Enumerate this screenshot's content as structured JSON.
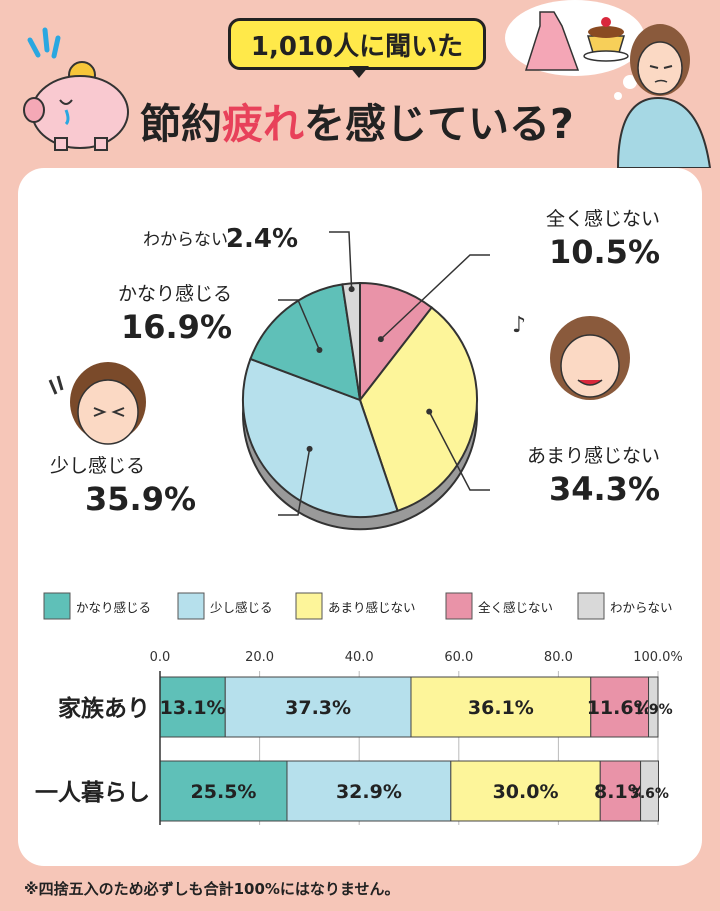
{
  "header": {
    "badge": "1,010人に聞いた",
    "title_pre": "節約",
    "title_highlight": "疲れ",
    "title_post": "を感じている?"
  },
  "footnote": "※四捨五入のため必ずしも合計100%にはなりません。",
  "colors": {
    "kanari": "#5fc0b8",
    "sukoshi": "#b6e0ec",
    "amari": "#fdf59a",
    "mattaku": "#e993a8",
    "wakaranai": "#d9d9d9"
  },
  "chart_data": [
    {
      "type": "pie",
      "categories": [
        "全く感じない",
        "あまり感じない",
        "少し感じる",
        "かなり感じる",
        "わからない"
      ],
      "values": [
        10.5,
        34.3,
        35.9,
        16.9,
        2.4
      ],
      "labels": [
        {
          "name": "全く感じない",
          "value": "10.5%"
        },
        {
          "name": "あまり感じない",
          "value": "34.3%"
        },
        {
          "name": "少し感じる",
          "value": "35.9%"
        },
        {
          "name": "かなり感じる",
          "value": "16.9%"
        },
        {
          "name": "わからない",
          "value": "2.4%"
        }
      ]
    },
    {
      "type": "bar",
      "orientation": "horizontal",
      "stacked": true,
      "categories": [
        "家族あり",
        "一人暮らし"
      ],
      "xlim": [
        0,
        100
      ],
      "xticks": [
        "0.0",
        "20.0",
        "40.0",
        "60.0",
        "80.0",
        "100.0%"
      ],
      "legend": [
        "かなり感じる",
        "少し感じる",
        "あまり感じない",
        "全く感じない",
        "わからない"
      ],
      "legend_position": "top",
      "grid": true,
      "series": [
        {
          "name": "かなり感じる",
          "values": [
            13.1,
            25.5
          ],
          "labels": [
            "13.1%",
            "25.5%"
          ]
        },
        {
          "name": "少し感じる",
          "values": [
            37.3,
            32.9
          ],
          "labels": [
            "37.3%",
            "32.9%"
          ]
        },
        {
          "name": "あまり感じない",
          "values": [
            36.1,
            30.0
          ],
          "labels": [
            "36.1%",
            "30.0%"
          ]
        },
        {
          "name": "全く感じない",
          "values": [
            11.6,
            8.1
          ],
          "labels": [
            "11.6%",
            "8.1%"
          ]
        },
        {
          "name": "わからない",
          "values": [
            1.9,
            3.6
          ],
          "labels": [
            "1.9%",
            "3.6%"
          ]
        }
      ]
    }
  ]
}
